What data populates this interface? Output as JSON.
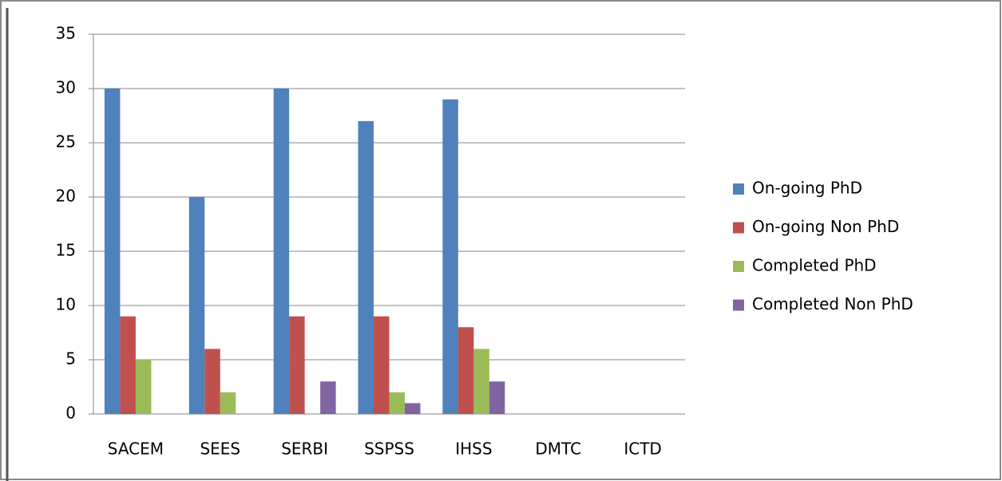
{
  "chart_data": {
    "type": "bar",
    "categories": [
      "SACEM",
      "SEES",
      "SERBI",
      "SSPSS",
      "IHSS",
      "DMTC",
      "ICTD"
    ],
    "series": [
      {
        "name": "On-going PhD",
        "color": "#4f81bd",
        "values": [
          30,
          20,
          30,
          27,
          29,
          0,
          0
        ]
      },
      {
        "name": "On-going Non PhD",
        "color": "#c0504d",
        "values": [
          9,
          6,
          9,
          9,
          8,
          0,
          0
        ]
      },
      {
        "name": "Completed PhD",
        "color": "#9bbb59",
        "values": [
          5,
          2,
          0,
          2,
          6,
          0,
          0
        ]
      },
      {
        "name": "Completed Non PhD",
        "color": "#8064a2",
        "values": [
          0,
          0,
          3,
          1,
          3,
          0,
          0
        ]
      }
    ],
    "ylim": [
      0,
      35
    ],
    "yticks": [
      0,
      5,
      10,
      15,
      20,
      25,
      30,
      35
    ],
    "grid": true,
    "legend": "right"
  }
}
